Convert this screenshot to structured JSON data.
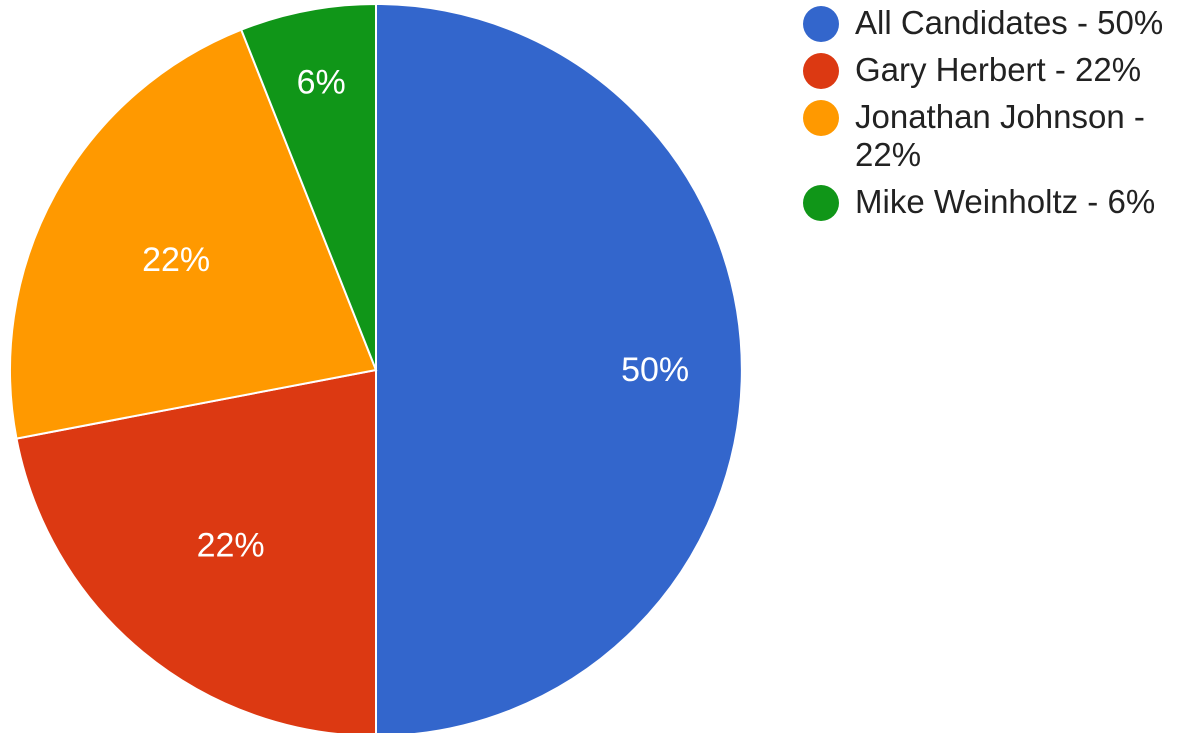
{
  "chart_data": {
    "type": "pie",
    "title": "",
    "legend_position": "right",
    "slices": [
      {
        "name": "All Candidates",
        "value": 50,
        "label": "50%",
        "legend_text": "All Candidates - 50%",
        "color": "#3366cc"
      },
      {
        "name": "Gary Herbert",
        "value": 22,
        "label": "22%",
        "legend_text": "Gary Herbert - 22%",
        "color": "#dc3912"
      },
      {
        "name": "Jonathan Johnson",
        "value": 22,
        "label": "22%",
        "legend_text": "Jonathan Johnson - 22%",
        "color": "#ff9900"
      },
      {
        "name": "Mike Weinholtz",
        "value": 6,
        "label": "6%",
        "legend_text": "Mike Weinholtz - 6%",
        "color": "#109618"
      }
    ]
  }
}
